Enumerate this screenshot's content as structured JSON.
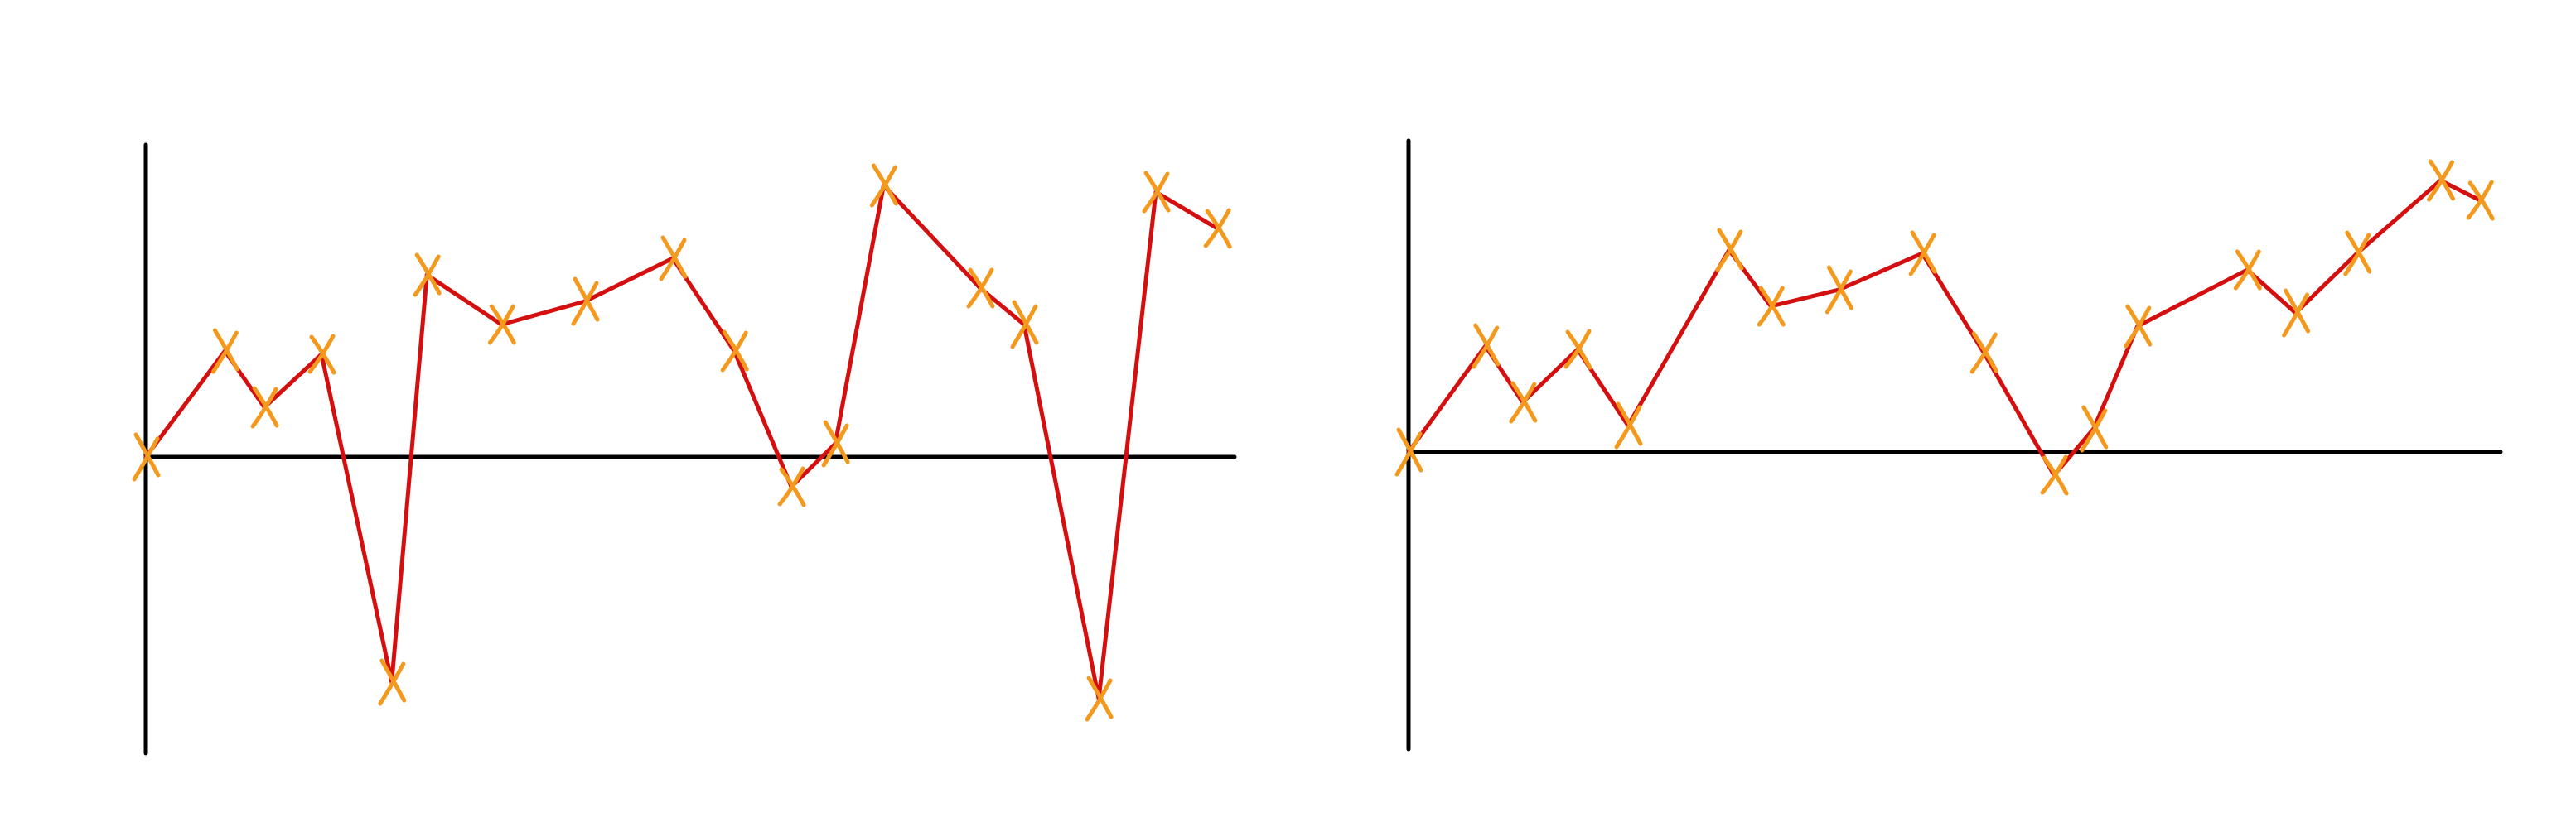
{
  "colors": {
    "axis": "#000000",
    "line": "#d40f0f",
    "marker": "#f39a1e",
    "background": "#ffffff"
  },
  "chart_data": [
    {
      "type": "line",
      "title": "",
      "xlabel": "",
      "ylabel": "",
      "xlim": [
        0,
        26.5
      ],
      "ylim": [
        -4.0,
        4.0
      ],
      "grid": false,
      "legend": "none",
      "marker_shape": "hand-drawn x",
      "x": [
        0,
        1.8,
        2.7,
        4.0,
        5.6,
        6.4,
        8.1,
        10.0,
        12.0,
        13.4,
        14.7,
        15.7,
        16.8,
        19.0,
        20.0,
        21.7,
        23.0,
        24.4
      ],
      "y": [
        0.0,
        1.6,
        0.75,
        1.55,
        -3.4,
        2.75,
        2.0,
        2.35,
        3.0,
        1.6,
        -0.45,
        0.2,
        4.1,
        2.55,
        2.0,
        -3.65,
        4.0,
        3.45
      ]
    },
    {
      "type": "line",
      "title": "",
      "xlabel": "",
      "ylabel": "",
      "xlim": [
        0,
        26.5
      ],
      "ylim": [
        -4.0,
        4.0
      ],
      "grid": false,
      "legend": "none",
      "marker_shape": "hand-drawn x",
      "x": [
        0,
        1.75,
        2.6,
        3.85,
        5.0,
        7.3,
        8.25,
        9.8,
        11.7,
        13.1,
        14.7,
        15.6,
        16.6,
        19.1,
        20.2,
        21.6,
        23.5,
        24.4
      ],
      "y": [
        0.0,
        1.6,
        0.75,
        1.55,
        0.4,
        3.05,
        2.2,
        2.45,
        3.0,
        1.5,
        -0.35,
        0.35,
        1.9,
        2.75,
        2.1,
        3.0,
        4.1,
        3.8
      ]
    }
  ]
}
